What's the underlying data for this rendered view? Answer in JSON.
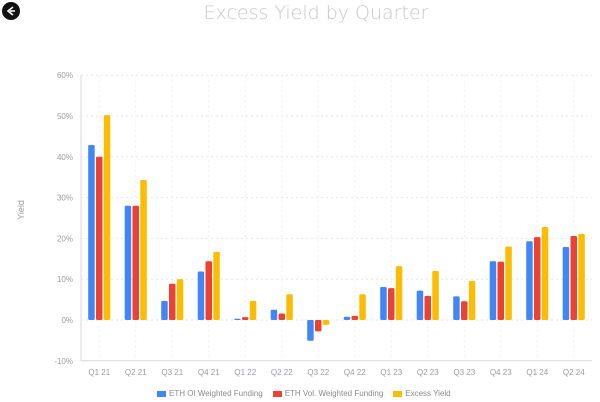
{
  "logo_icon": "exchange-logo-icon",
  "chart_data": {
    "type": "bar",
    "title": "Excess Yield by Quarter",
    "xlabel": "",
    "ylabel": "Yield",
    "ylim": [
      -10,
      60
    ],
    "yticks": [
      "-10%",
      "0%",
      "10%",
      "20%",
      "30%",
      "40%",
      "50%",
      "60%"
    ],
    "ytick_values": [
      -10,
      0,
      10,
      20,
      30,
      40,
      50,
      60
    ],
    "grid": true,
    "legend_position": "bottom",
    "categories": [
      "Q1 21",
      "Q2 21",
      "Q3 21",
      "Q4 21",
      "Q1 22",
      "Q2 22",
      "Q3 22",
      "Q4 22",
      "Q1 23",
      "Q2 23",
      "Q3 23",
      "Q4 23",
      "Q1 24",
      "Q2 24"
    ],
    "series": [
      {
        "name": "ETH OI Weighted Funding",
        "color": "#4285f4",
        "values": [
          42.9,
          28.0,
          4.7,
          11.9,
          0.3,
          2.5,
          -5.1,
          0.8,
          8.1,
          7.2,
          5.8,
          14.4,
          19.3,
          17.9
        ]
      },
      {
        "name": "ETH Vol. Weighted Funding",
        "color": "#ea4335",
        "values": [
          40.0,
          28.0,
          8.9,
          14.4,
          0.7,
          1.6,
          -2.8,
          1.0,
          7.8,
          5.9,
          4.6,
          14.3,
          20.3,
          20.6
        ]
      },
      {
        "name": "Excess Yield",
        "color": "#fbbc04",
        "values": [
          50.2,
          34.3,
          10.0,
          16.7,
          4.7,
          6.3,
          -1.2,
          6.3,
          13.2,
          12.0,
          9.6,
          18.0,
          22.8,
          21.1
        ]
      }
    ]
  }
}
